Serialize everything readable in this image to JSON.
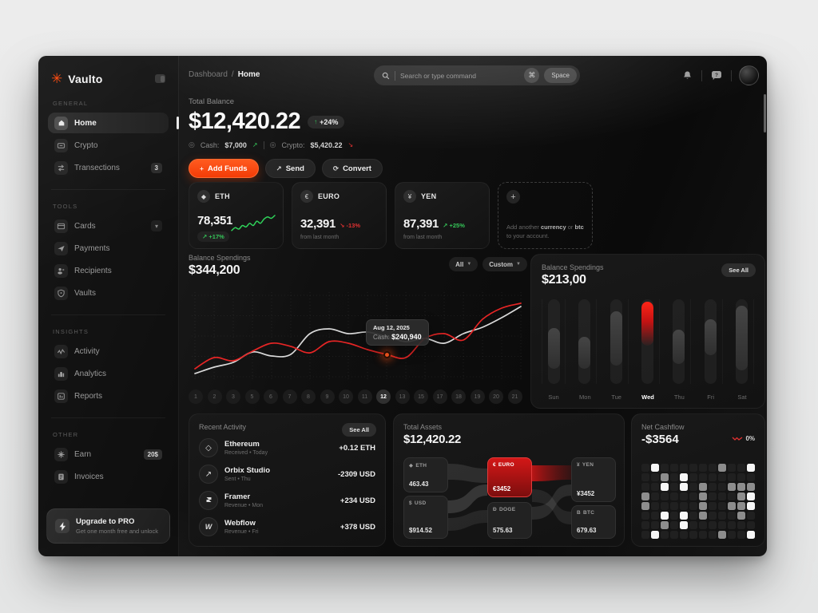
{
  "app": {
    "name": "Vaulto"
  },
  "topbar": {
    "breadcrumb": {
      "parent": "Dashboard",
      "separator": "/",
      "current": "Home"
    },
    "search": {
      "placeholder": "Search or type command",
      "shortcut_cmd": "⌘",
      "shortcut_key": "Space"
    }
  },
  "sidebar": {
    "sections": [
      {
        "label": "GENERAL",
        "items": [
          {
            "label": "Home"
          },
          {
            "label": "Crypto"
          },
          {
            "label": "Transections",
            "badge": "3"
          }
        ]
      },
      {
        "label": "TOOLS",
        "items": [
          {
            "label": "Cards"
          },
          {
            "label": "Payments"
          },
          {
            "label": "Recipients"
          },
          {
            "label": "Vaults"
          }
        ]
      },
      {
        "label": "INSIGHTS",
        "items": [
          {
            "label": "Activity"
          },
          {
            "label": "Analytics"
          },
          {
            "label": "Reports"
          }
        ]
      },
      {
        "label": "OTHER",
        "items": [
          {
            "label": "Earn",
            "badge": "20$"
          },
          {
            "label": "Invoices"
          }
        ]
      }
    ],
    "upgrade": {
      "title": "Upgrade to PRO",
      "subtitle": "Get one month free and unlock"
    }
  },
  "hero": {
    "label": "Total Balance",
    "amount": "$12,420.22",
    "change_arrow": "↑",
    "change_badge": "+24%",
    "cash_label": "Cash:",
    "cash_value": "$7,000",
    "cash_trend": "↗",
    "crypto_label": "Crypto:",
    "crypto_value": "$5,420.22",
    "crypto_trend": "↘",
    "buttons": {
      "add": "Add Funds",
      "add_icon": "+",
      "send": "Send",
      "send_icon": "↗",
      "convert": "Convert",
      "convert_icon": "⟳"
    }
  },
  "currency_cards": [
    {
      "code": "ETH",
      "symbol": "◆",
      "value": "78,351",
      "arrow": "↗",
      "change": "+17%",
      "note": ""
    },
    {
      "code": "EURO",
      "symbol": "€",
      "value": "32,391",
      "arrow": "↘",
      "change": "-13%",
      "note": "from last month"
    },
    {
      "code": "YEN",
      "symbol": "¥",
      "value": "87,391",
      "arrow": "↗",
      "change": "+25%",
      "note": "from last month"
    }
  ],
  "add_card": {
    "plus": "+",
    "t1": "Add another ",
    "b1": "currency",
    "t2": " or ",
    "b2": "btc",
    "t3": " to your account."
  },
  "recent_activity": {
    "title": "Recent Activity",
    "see_all": "See All",
    "items": [
      {
        "name": "Ethereum",
        "sub": "Received  •  Today",
        "amount": "+0.12 ETH"
      },
      {
        "name": "Orbix Studio",
        "sub": "Sent  •  Thu",
        "amount": "-2309 USD"
      },
      {
        "name": "Framer",
        "sub": "Revenue  •  Mon",
        "amount": "+234 USD"
      },
      {
        "name": "Webflow",
        "sub": "Revenue  •  Fri",
        "amount": "+378 USD"
      }
    ]
  },
  "chart_data": [
    {
      "type": "line",
      "title": "Balance Spendings",
      "total": "$344,200",
      "filters": [
        {
          "label": "All"
        },
        {
          "label": "Custom"
        }
      ],
      "x_labels": [
        "1",
        "2",
        "3",
        "5",
        "6",
        "7",
        "8",
        "9",
        "10",
        "11",
        "12",
        "13",
        "15",
        "17",
        "18",
        "19",
        "20",
        "21"
      ],
      "active_x": "12",
      "ylim": [
        0,
        100
      ],
      "grid": true,
      "series": [
        {
          "name": "Cash",
          "color": "#e62525",
          "values": [
            12,
            26,
            22,
            34,
            44,
            40,
            32,
            46,
            44,
            36,
            30,
            26,
            50,
            56,
            48,
            74,
            88,
            94
          ]
        },
        {
          "name": "Crypto",
          "color": "#d9d9d9",
          "values": [
            6,
            14,
            20,
            33,
            28,
            30,
            56,
            62,
            56,
            58,
            52,
            46,
            50,
            44,
            56,
            64,
            76,
            90
          ]
        }
      ],
      "tooltip": {
        "date": "Aug 12, 2025",
        "label": "Cash:",
        "value": "$240,940",
        "index": 10
      }
    },
    {
      "type": "bar",
      "title": "Balance Spendings",
      "total": "$213,00",
      "see_all": "See All",
      "categories": [
        "Sun",
        "Mon",
        "Tue",
        "Wed",
        "Thu",
        "Fri",
        "Sat"
      ],
      "bars": [
        {
          "top": 34,
          "height": 48
        },
        {
          "top": 44,
          "height": 38
        },
        {
          "top": 14,
          "height": 64
        },
        {
          "top": 3,
          "height": 52
        },
        {
          "top": 36,
          "height": 40
        },
        {
          "top": 24,
          "height": 42
        },
        {
          "top": 8,
          "height": 76
        }
      ],
      "highlight_index": 3
    },
    {
      "type": "sankey",
      "title": "Total Assets",
      "total": "$12,420.22",
      "nodes": {
        "left": [
          {
            "icon": "◆",
            "code": "ETH",
            "value": "463.43"
          },
          {
            "icon": "$",
            "code": "USD",
            "value": "$914.52"
          }
        ],
        "mid": [
          {
            "icon": "€",
            "code": "EURO",
            "value": "€3452"
          },
          {
            "icon": "Ð",
            "code": "DOGE",
            "value": "575.63"
          }
        ],
        "right": [
          {
            "icon": "¥",
            "code": "YEN",
            "value": "¥3452"
          },
          {
            "icon": "B",
            "code": "BTC",
            "value": "679.63"
          }
        ]
      }
    },
    {
      "type": "heatmap",
      "title": "Net Cashflow",
      "total": "-$3564",
      "change": "0%",
      "grid": [
        [
          0,
          2,
          0,
          0,
          0,
          0,
          0,
          0,
          1,
          0,
          0,
          2
        ],
        [
          0,
          0,
          1,
          0,
          2,
          0,
          0,
          0,
          0,
          0,
          0,
          0
        ],
        [
          0,
          0,
          2,
          0,
          2,
          0,
          1,
          0,
          0,
          1,
          1,
          1
        ],
        [
          1,
          0,
          0,
          0,
          0,
          0,
          1,
          0,
          0,
          0,
          1,
          2
        ],
        [
          1,
          0,
          0,
          0,
          0,
          0,
          1,
          0,
          0,
          1,
          1,
          2
        ],
        [
          0,
          0,
          2,
          0,
          2,
          0,
          1,
          0,
          0,
          0,
          1,
          0
        ],
        [
          0,
          0,
          1,
          0,
          2,
          0,
          0,
          0,
          0,
          0,
          0,
          0
        ],
        [
          0,
          2,
          0,
          0,
          0,
          0,
          0,
          0,
          1,
          0,
          0,
          2
        ]
      ]
    }
  ]
}
